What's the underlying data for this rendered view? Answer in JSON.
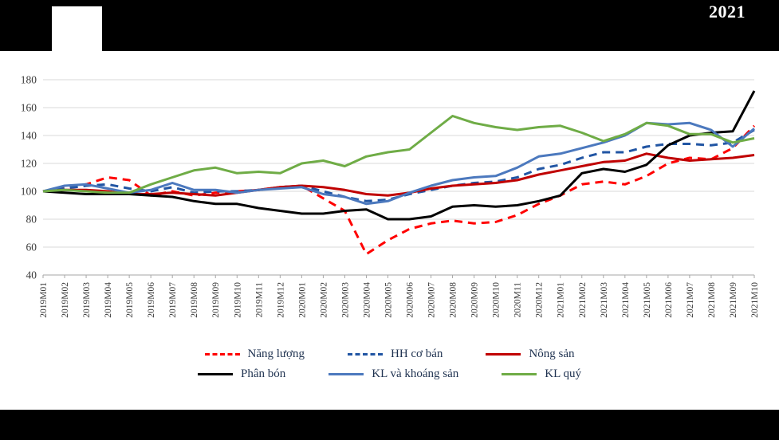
{
  "header": {
    "visible_text": "2021"
  },
  "chart_data": {
    "type": "line",
    "title": "",
    "xlabel": "",
    "ylabel": "",
    "ylim": [
      40,
      180
    ],
    "yticks": [
      40,
      60,
      80,
      100,
      120,
      140,
      160,
      180
    ],
    "grid": true,
    "legend_position": "bottom",
    "x": [
      "2019M01",
      "2019M02",
      "2019M03",
      "2019M04",
      "2019M05",
      "2019M06",
      "2019M07",
      "2019M08",
      "2019M09",
      "2019M10",
      "2019M11",
      "2019M12",
      "2020M01",
      "2020M02",
      "2020M03",
      "2020M04",
      "2020M05",
      "2020M06",
      "2020M07",
      "2020M08",
      "2020M09",
      "2020M10",
      "2020M11",
      "2020M12",
      "2021M01",
      "2021M02",
      "2021M03",
      "2021M04",
      "2021M05",
      "2021M06",
      "2021M07",
      "2021M08",
      "2021M09",
      "2021M10"
    ],
    "series": [
      {
        "name": "Năng lượng",
        "color": "#ff0000",
        "dash": "10 7",
        "width": 3,
        "values": [
          100,
          103,
          105,
          110,
          108,
          97,
          100,
          97,
          99,
          100,
          101,
          103,
          104,
          95,
          86,
          55,
          65,
          73,
          77,
          79,
          77,
          78,
          83,
          91,
          97,
          105,
          107,
          105,
          111,
          120,
          124,
          123,
          131,
          147
        ]
      },
      {
        "name": "HH cơ bán",
        "color": "#2155a3",
        "dash": "10 7",
        "width": 3,
        "values": [
          100,
          102,
          104,
          105,
          102,
          100,
          103,
          99,
          100,
          100,
          101,
          103,
          104,
          100,
          96,
          93,
          94,
          98,
          101,
          104,
          106,
          107,
          110,
          116,
          119,
          124,
          128,
          128,
          132,
          134,
          134,
          133,
          135,
          144
        ]
      },
      {
        "name": "Nông sản",
        "color": "#c00000",
        "dash": null,
        "width": 3,
        "values": [
          100,
          101,
          101,
          100,
          98,
          98,
          99,
          98,
          97,
          99,
          101,
          103,
          104,
          103,
          101,
          98,
          97,
          99,
          102,
          104,
          105,
          106,
          108,
          112,
          115,
          118,
          121,
          122,
          127,
          124,
          122,
          123,
          124,
          126
        ]
      },
      {
        "name": "Phân bón",
        "color": "#000000",
        "dash": null,
        "width": 3,
        "values": [
          100,
          99,
          98,
          98,
          98,
          97,
          96,
          93,
          91,
          91,
          88,
          86,
          84,
          84,
          86,
          87,
          80,
          80,
          82,
          89,
          90,
          89,
          90,
          93,
          97,
          113,
          116,
          114,
          119,
          133,
          140,
          142,
          143,
          172
        ]
      },
      {
        "name": "KL và khoáng sản",
        "color": "#4c79be",
        "dash": null,
        "width": 3,
        "values": [
          100,
          104,
          105,
          102,
          99,
          101,
          106,
          101,
          101,
          99,
          101,
          102,
          103,
          98,
          96,
          91,
          93,
          99,
          104,
          108,
          110,
          111,
          117,
          125,
          127,
          131,
          135,
          140,
          149,
          148,
          149,
          144,
          132,
          145
        ]
      },
      {
        "name": "KL quý",
        "color": "#6fac46",
        "dash": null,
        "width": 3,
        "values": [
          100,
          101,
          100,
          99,
          99,
          105,
          110,
          115,
          117,
          113,
          114,
          113,
          120,
          122,
          118,
          125,
          128,
          130,
          142,
          154,
          149,
          146,
          144,
          146,
          147,
          142,
          136,
          141,
          149,
          147,
          141,
          141,
          135,
          138
        ]
      }
    ]
  }
}
